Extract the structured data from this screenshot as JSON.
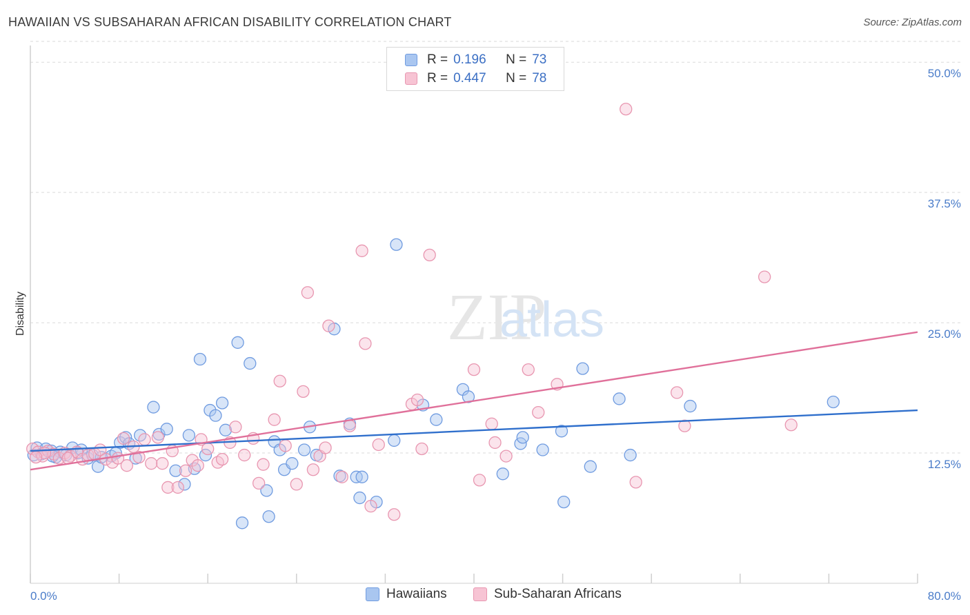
{
  "header": {
    "title": "HAWAIIAN VS SUBSAHARAN AFRICAN DISABILITY CORRELATION CHART",
    "source": "Source: ZipAtlas.com"
  },
  "watermark": {
    "zip": "ZIP",
    "atlas": "atlas"
  },
  "legend": {
    "rows": [
      {
        "r_label": "R =",
        "r_value": "0.196",
        "n_label": "N =",
        "n_value": "73",
        "color": "#a9c6f0",
        "border": "#6f9be0"
      },
      {
        "r_label": "R =",
        "r_value": "0.447",
        "n_label": "N =",
        "n_value": "78",
        "color": "#f7c4d4",
        "border": "#e896b0"
      }
    ]
  },
  "bottom_legend": {
    "items": [
      {
        "label": "Hawaiians",
        "color": "#a9c6f0",
        "border": "#6f9be0"
      },
      {
        "label": "Sub-Saharan Africans",
        "color": "#f7c4d4",
        "border": "#e896b0"
      }
    ]
  },
  "chart_data": {
    "type": "scatter",
    "title": "HAWAIIAN VS SUBSAHARAN AFRICAN DISABILITY CORRELATION CHART",
    "xlabel": "",
    "ylabel": "Disability",
    "xlim": [
      0,
      80
    ],
    "ylim": [
      0,
      52
    ],
    "x_tick_labels": [
      "0.0%",
      "80.0%"
    ],
    "y_ticks": [
      12.5,
      25.0,
      37.5,
      50.0
    ],
    "y_tick_labels": [
      "12.5%",
      "25.0%",
      "37.5%",
      "50.0%"
    ],
    "grid": "horizontal dashed",
    "legend_position": "top-center",
    "series": [
      {
        "name": "Hawaiians",
        "color": "#6f9be0",
        "fill": "#a9c6f0",
        "trend": {
          "x": [
            0,
            80
          ],
          "y": [
            12.7,
            16.6
          ]
        },
        "points": [
          [
            0.3,
            12.3
          ],
          [
            0.6,
            13.0
          ],
          [
            1.0,
            12.4
          ],
          [
            1.4,
            12.9
          ],
          [
            1.9,
            12.7
          ],
          [
            2.3,
            12.1
          ],
          [
            2.7,
            12.6
          ],
          [
            3.2,
            12.3
          ],
          [
            3.8,
            13.0
          ],
          [
            4.3,
            12.5
          ],
          [
            4.6,
            12.8
          ],
          [
            5.2,
            12.0
          ],
          [
            5.6,
            12.3
          ],
          [
            6.1,
            11.2
          ],
          [
            7.3,
            12.2
          ],
          [
            7.7,
            12.5
          ],
          [
            8.1,
            13.5
          ],
          [
            8.6,
            14.0
          ],
          [
            8.9,
            13.4
          ],
          [
            9.5,
            12.0
          ],
          [
            9.9,
            14.2
          ],
          [
            11.1,
            16.9
          ],
          [
            11.6,
            14.3
          ],
          [
            12.3,
            14.8
          ],
          [
            13.1,
            10.8
          ],
          [
            13.9,
            9.5
          ],
          [
            14.3,
            14.2
          ],
          [
            14.8,
            11.0
          ],
          [
            15.3,
            21.5
          ],
          [
            15.8,
            12.3
          ],
          [
            16.2,
            16.6
          ],
          [
            16.7,
            16.1
          ],
          [
            17.3,
            17.3
          ],
          [
            17.6,
            14.7
          ],
          [
            18.7,
            23.1
          ],
          [
            19.1,
            5.8
          ],
          [
            19.8,
            21.1
          ],
          [
            21.3,
            8.9
          ],
          [
            21.5,
            6.4
          ],
          [
            22.0,
            13.6
          ],
          [
            22.5,
            12.8
          ],
          [
            22.9,
            10.9
          ],
          [
            23.6,
            11.5
          ],
          [
            24.7,
            12.8
          ],
          [
            25.2,
            15.0
          ],
          [
            25.8,
            12.3
          ],
          [
            27.4,
            24.4
          ],
          [
            27.9,
            10.3
          ],
          [
            28.8,
            15.3
          ],
          [
            29.4,
            10.2
          ],
          [
            29.9,
            10.2
          ],
          [
            29.7,
            8.2
          ],
          [
            31.2,
            7.8
          ],
          [
            32.8,
            13.7
          ],
          [
            33.0,
            32.5
          ],
          [
            35.4,
            17.1
          ],
          [
            36.6,
            15.7
          ],
          [
            39.0,
            18.6
          ],
          [
            39.5,
            17.9
          ],
          [
            42.6,
            10.5
          ],
          [
            44.2,
            13.4
          ],
          [
            44.4,
            14.0
          ],
          [
            46.2,
            12.8
          ],
          [
            47.9,
            14.6
          ],
          [
            48.1,
            7.8
          ],
          [
            49.8,
            20.6
          ],
          [
            50.5,
            11.2
          ],
          [
            53.1,
            17.7
          ],
          [
            54.1,
            12.3
          ],
          [
            59.5,
            17.0
          ],
          [
            72.4,
            17.4
          ],
          [
            2.0,
            12.2
          ],
          [
            6.4,
            12.1
          ]
        ]
      },
      {
        "name": "Sub-Saharan Africans",
        "color": "#e896b0",
        "fill": "#f7c4d4",
        "trend": {
          "x": [
            0,
            80
          ],
          "y": [
            10.9,
            24.1
          ]
        },
        "points": [
          [
            0.2,
            12.9
          ],
          [
            0.7,
            12.6
          ],
          [
            1.1,
            12.2
          ],
          [
            1.6,
            12.7
          ],
          [
            2.1,
            12.4
          ],
          [
            2.6,
            12.0
          ],
          [
            3.1,
            12.5
          ],
          [
            3.6,
            12.2
          ],
          [
            4.2,
            12.6
          ],
          [
            4.7,
            11.9
          ],
          [
            5.2,
            12.3
          ],
          [
            5.8,
            12.4
          ],
          [
            6.3,
            12.8
          ],
          [
            6.8,
            11.9
          ],
          [
            7.4,
            11.6
          ],
          [
            7.9,
            12.0
          ],
          [
            8.4,
            13.9
          ],
          [
            8.7,
            11.3
          ],
          [
            9.3,
            13.1
          ],
          [
            9.8,
            12.1
          ],
          [
            10.3,
            13.8
          ],
          [
            10.9,
            11.5
          ],
          [
            11.5,
            14.0
          ],
          [
            11.9,
            11.5
          ],
          [
            12.4,
            9.2
          ],
          [
            12.8,
            12.7
          ],
          [
            13.3,
            9.2
          ],
          [
            14.0,
            10.8
          ],
          [
            14.6,
            11.8
          ],
          [
            15.1,
            11.3
          ],
          [
            15.4,
            13.8
          ],
          [
            16.0,
            12.9
          ],
          [
            16.9,
            11.6
          ],
          [
            17.3,
            11.9
          ],
          [
            18.0,
            13.5
          ],
          [
            18.5,
            15.0
          ],
          [
            19.3,
            12.3
          ],
          [
            20.1,
            13.9
          ],
          [
            20.6,
            9.6
          ],
          [
            21.0,
            11.4
          ],
          [
            22.0,
            15.7
          ],
          [
            22.5,
            19.4
          ],
          [
            23.0,
            13.2
          ],
          [
            24.0,
            9.5
          ],
          [
            24.6,
            18.4
          ],
          [
            25.0,
            27.9
          ],
          [
            25.5,
            10.9
          ],
          [
            26.1,
            12.2
          ],
          [
            26.6,
            13.0
          ],
          [
            26.9,
            24.7
          ],
          [
            28.1,
            10.2
          ],
          [
            28.8,
            15.1
          ],
          [
            29.9,
            31.9
          ],
          [
            30.2,
            23.0
          ],
          [
            30.7,
            7.4
          ],
          [
            31.4,
            13.3
          ],
          [
            32.8,
            6.6
          ],
          [
            34.4,
            17.2
          ],
          [
            34.9,
            17.6
          ],
          [
            35.3,
            12.9
          ],
          [
            36.0,
            31.5
          ],
          [
            40.0,
            20.5
          ],
          [
            40.5,
            9.9
          ],
          [
            41.6,
            15.3
          ],
          [
            41.9,
            13.5
          ],
          [
            42.9,
            12.2
          ],
          [
            44.9,
            20.5
          ],
          [
            45.8,
            16.4
          ],
          [
            47.5,
            19.1
          ],
          [
            53.7,
            45.5
          ],
          [
            54.6,
            9.7
          ],
          [
            58.3,
            18.3
          ],
          [
            59.0,
            15.1
          ],
          [
            68.6,
            15.2
          ],
          [
            66.2,
            29.4
          ],
          [
            3.4,
            12.0
          ],
          [
            1.3,
            12.5
          ],
          [
            0.5,
            12.1
          ]
        ]
      }
    ]
  }
}
